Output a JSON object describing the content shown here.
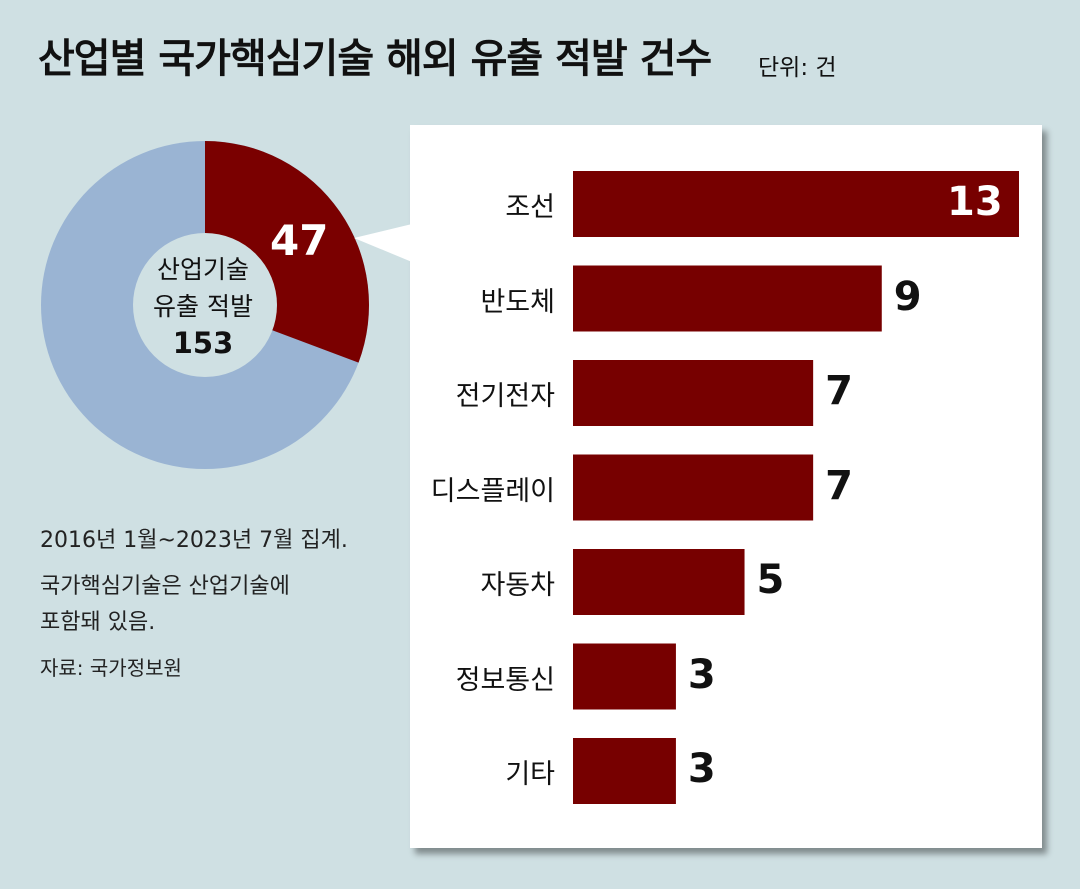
{
  "header": {
    "title": "산업별 국가핵심기술 해외 유출 적발 건수",
    "unit": "단위: 건"
  },
  "donut": {
    "label_line1": "산업기술",
    "label_line2": "유출 적발",
    "total": "153",
    "highlight_value": "47",
    "total_value": 153,
    "part_value": 47,
    "colors": {
      "part": "#7a0000",
      "rest": "#9ab4d3",
      "center": "#cfe0e3"
    }
  },
  "notes": {
    "line1": "2016년 1월~2023년 7월 집계.",
    "line2": "국가핵심기술은 산업기술에",
    "line3": "포함돼 있음.",
    "source": "자료: 국가정보원"
  },
  "chart_data": {
    "type": "bar",
    "orientation": "horizontal",
    "categories": [
      "조선",
      "반도체",
      "전기전자",
      "디스플레이",
      "자동차",
      "정보통신",
      "기타"
    ],
    "values": [
      13,
      9,
      7,
      7,
      5,
      3,
      3
    ],
    "value_labels": [
      "13",
      "9",
      "7",
      "7",
      "5",
      "3",
      "3"
    ],
    "title": "산업별 국가핵심기술 해외 유출 적발 건수",
    "unit": "단위: 건",
    "xlim": [
      0,
      13
    ],
    "grid": false,
    "legend": "none",
    "bar_color": "#770000"
  }
}
